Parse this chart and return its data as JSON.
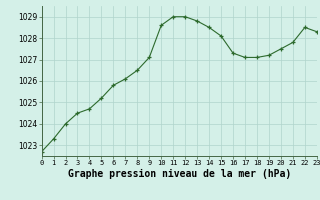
{
  "hours": [
    0,
    1,
    2,
    3,
    4,
    5,
    6,
    7,
    8,
    9,
    10,
    11,
    12,
    13,
    14,
    15,
    16,
    17,
    18,
    19,
    20,
    21,
    22,
    23
  ],
  "pressure": [
    1022.7,
    1023.3,
    1024.0,
    1024.5,
    1024.7,
    1025.2,
    1025.8,
    1026.1,
    1026.5,
    1027.1,
    1028.6,
    1029.0,
    1029.0,
    1028.8,
    1028.5,
    1028.1,
    1027.3,
    1027.1,
    1027.1,
    1027.2,
    1027.5,
    1027.8,
    1028.5,
    1028.3
  ],
  "line_color": "#2d6a2d",
  "marker": "+",
  "bg_color": "#d4f0e8",
  "grid_color": "#b0d4cc",
  "title": "Graphe pression niveau de la mer (hPa)",
  "ylim_min": 1022.5,
  "ylim_max": 1029.5,
  "xlim_min": 0,
  "xlim_max": 23,
  "yticks": [
    1023,
    1024,
    1025,
    1026,
    1027,
    1028,
    1029
  ],
  "xtick_labels": [
    "0",
    "1",
    "2",
    "3",
    "4",
    "5",
    "6",
    "7",
    "8",
    "9",
    "10",
    "11",
    "12",
    "13",
    "14",
    "15",
    "16",
    "17",
    "18",
    "19",
    "20",
    "21",
    "22",
    "23"
  ],
  "ylabel_fontsize": 5.5,
  "xlabel_fontsize": 7.0,
  "title_fontweight": "bold"
}
